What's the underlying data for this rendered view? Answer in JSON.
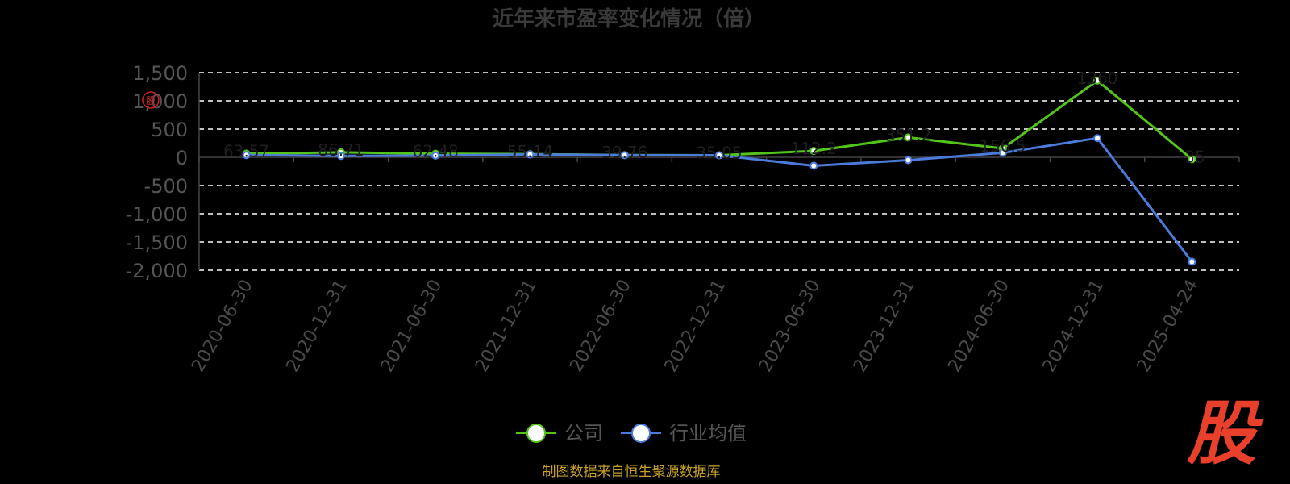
{
  "chart_data": {
    "type": "line",
    "title": "近年来市盈率变化情况（倍）",
    "categories": [
      "2020-06-30",
      "2020-12-31",
      "2021-06-30",
      "2021-12-31",
      "2022-06-30",
      "2022-12-31",
      "2023-06-30",
      "2023-12-31",
      "2024-06-30",
      "2024-12-31",
      "2025-04-24"
    ],
    "ylim": [
      -2000,
      1500
    ],
    "yticks": [
      "1,500",
      "1,000",
      "500",
      "0",
      "-500",
      "-1,000",
      "-1,500",
      "-2,000"
    ],
    "ytick_values": [
      1500,
      1000,
      500,
      0,
      -500,
      -1000,
      -1500,
      -2000
    ],
    "grid": true,
    "legend_position": "bottom",
    "series": [
      {
        "name": "公司",
        "color": "#52c41a",
        "values": [
          63.57,
          86.71,
          62.48,
          55.14,
          39.76,
          35.05,
          112.2,
          351.2,
          156.5,
          1360.0,
          -35.0
        ]
      },
      {
        "name": "行业均值",
        "color": "#4b7bdc",
        "values": [
          40,
          25,
          30,
          50,
          38,
          35,
          -150,
          -50,
          80,
          340,
          -1850
        ]
      }
    ],
    "data_labels": [
      "63.57",
      "86.71",
      "62.48",
      "55.14",
      "39.76",
      "35.05",
      "112.2",
      "351.2",
      "156.5",
      "1360",
      "-35"
    ]
  },
  "source_note": "制图数据来自恒生聚源数据库",
  "watermark_text": "股",
  "stamp_text": "股"
}
